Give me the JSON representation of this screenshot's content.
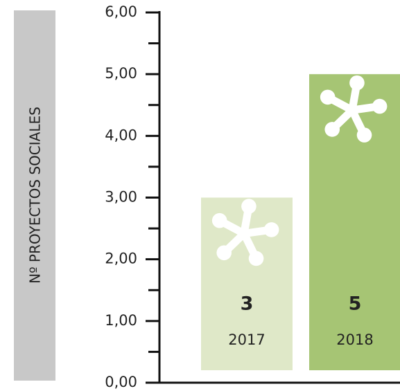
{
  "chart_data": {
    "type": "bar",
    "ylabel": "Nº PROYECTOS SOCIALES",
    "categories": [
      "2017",
      "2018"
    ],
    "values": [
      3,
      5
    ],
    "colors": [
      "#dfe8c8",
      "#a6c574"
    ],
    "ylim": [
      0,
      6
    ],
    "yticks": [
      {
        "value": 0,
        "label": "0,00"
      },
      {
        "value": 1,
        "label": "1,00"
      },
      {
        "value": 2,
        "label": "2,00"
      },
      {
        "value": 3,
        "label": "3,00"
      },
      {
        "value": 4,
        "label": "4,00"
      },
      {
        "value": 5,
        "label": "5,00"
      },
      {
        "value": 6,
        "label": "6,00"
      }
    ],
    "minor_yticks": [
      0.5,
      1.5,
      2.5,
      3.5,
      4.5,
      5.5
    ]
  }
}
